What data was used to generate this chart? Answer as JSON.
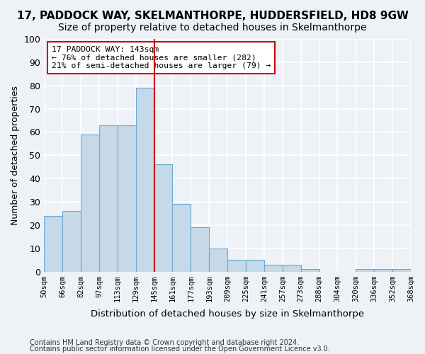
{
  "title": "17, PADDOCK WAY, SKELMANTHORPE, HUDDERSFIELD, HD8 9GW",
  "subtitle": "Size of property relative to detached houses in Skelmanthorpe",
  "xlabel": "Distribution of detached houses by size in Skelmanthorpe",
  "ylabel": "Number of detached properties",
  "categories": [
    "50sqm",
    "66sqm",
    "82sqm",
    "97sqm",
    "113sqm",
    "129sqm",
    "145sqm",
    "161sqm",
    "177sqm",
    "193sqm",
    "209sqm",
    "225sqm",
    "241sqm",
    "257sqm",
    "273sqm",
    "288sqm",
    "304sqm",
    "320sqm",
    "336sqm",
    "352sqm",
    "368sqm"
  ],
  "bar_values": [
    24,
    26,
    59,
    63,
    63,
    79,
    46,
    29,
    19,
    10,
    5,
    5,
    3,
    3,
    1,
    0,
    0,
    1,
    1,
    1
  ],
  "bar_color": "#c6d9e8",
  "bar_edge_color": "#6aaad4",
  "vline_x": 6.0,
  "vline_color": "#cc0000",
  "annotation_text": "17 PADDOCK WAY: 143sqm\n← 76% of detached houses are smaller (282)\n21% of semi-detached houses are larger (79) →",
  "annotation_box_color": "#ffffff",
  "annotation_box_edge_color": "#cc0000",
  "ylim": [
    0,
    100
  ],
  "yticks": [
    0,
    10,
    20,
    30,
    40,
    50,
    60,
    70,
    80,
    90,
    100
  ],
  "footer1": "Contains HM Land Registry data © Crown copyright and database right 2024.",
  "footer2": "Contains public sector information licensed under the Open Government Licence v3.0.",
  "bg_color": "#eef2f7",
  "grid_color": "#ffffff",
  "title_fontsize": 11,
  "subtitle_fontsize": 10
}
